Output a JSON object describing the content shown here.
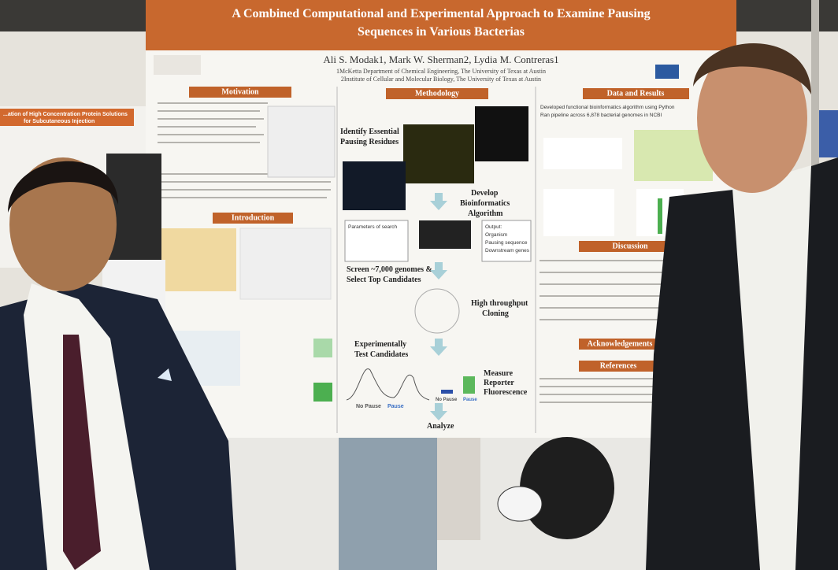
{
  "poster": {
    "title": [
      "A Combined Computational and Experimental Approach to Examine Pausing",
      "Sequences in Various Bacterias"
    ],
    "authors": "Ali S. Modak1, Mark W. Sherman2, Lydia M. Contreras1",
    "affiliations": [
      "1McKetta Department of Chemical Engineering, The University of Texas at Austin",
      "2Institute of Cellular and Molecular Biology, The University of Texas at Austin"
    ],
    "sections": {
      "motivation": "Motivation",
      "introduction": "Introduction",
      "methodology": "Methodology",
      "data_results": "Data and Results",
      "discussion": "Discussion",
      "acknowledgements": "Acknowledgements",
      "references": "References"
    },
    "flow": [
      [
        "Identify Essential",
        "Pausing Residues"
      ],
      [
        "Develop",
        "Bioinformatics",
        "Algorithm"
      ],
      [
        "Screen ~7,000 genomes &",
        "Select Top Candidates"
      ],
      [
        "High throughput",
        "Cloning"
      ],
      [
        "Experimentally",
        "Test Candidates"
      ],
      [
        "Measure",
        "Reporter",
        "Fluorescence"
      ],
      [
        "Analyze"
      ]
    ],
    "search_box": [
      "Parameters of search",
      "Output:",
      "Organism",
      "Pausing sequence",
      "Downstream genes"
    ],
    "plot_labels": [
      "No Pause",
      "Pause",
      "No Pause",
      "Pause"
    ],
    "results_bullets": [
      "Developed functional bioinformatics algorithm using Python",
      "Ran pipeline across 6,878 bacterial genomes in NCBI"
    ]
  },
  "background_poster": {
    "title": "...ation of High Concentration Protein Solutions",
    "subtitle": "for Subcutaneous Injection"
  }
}
